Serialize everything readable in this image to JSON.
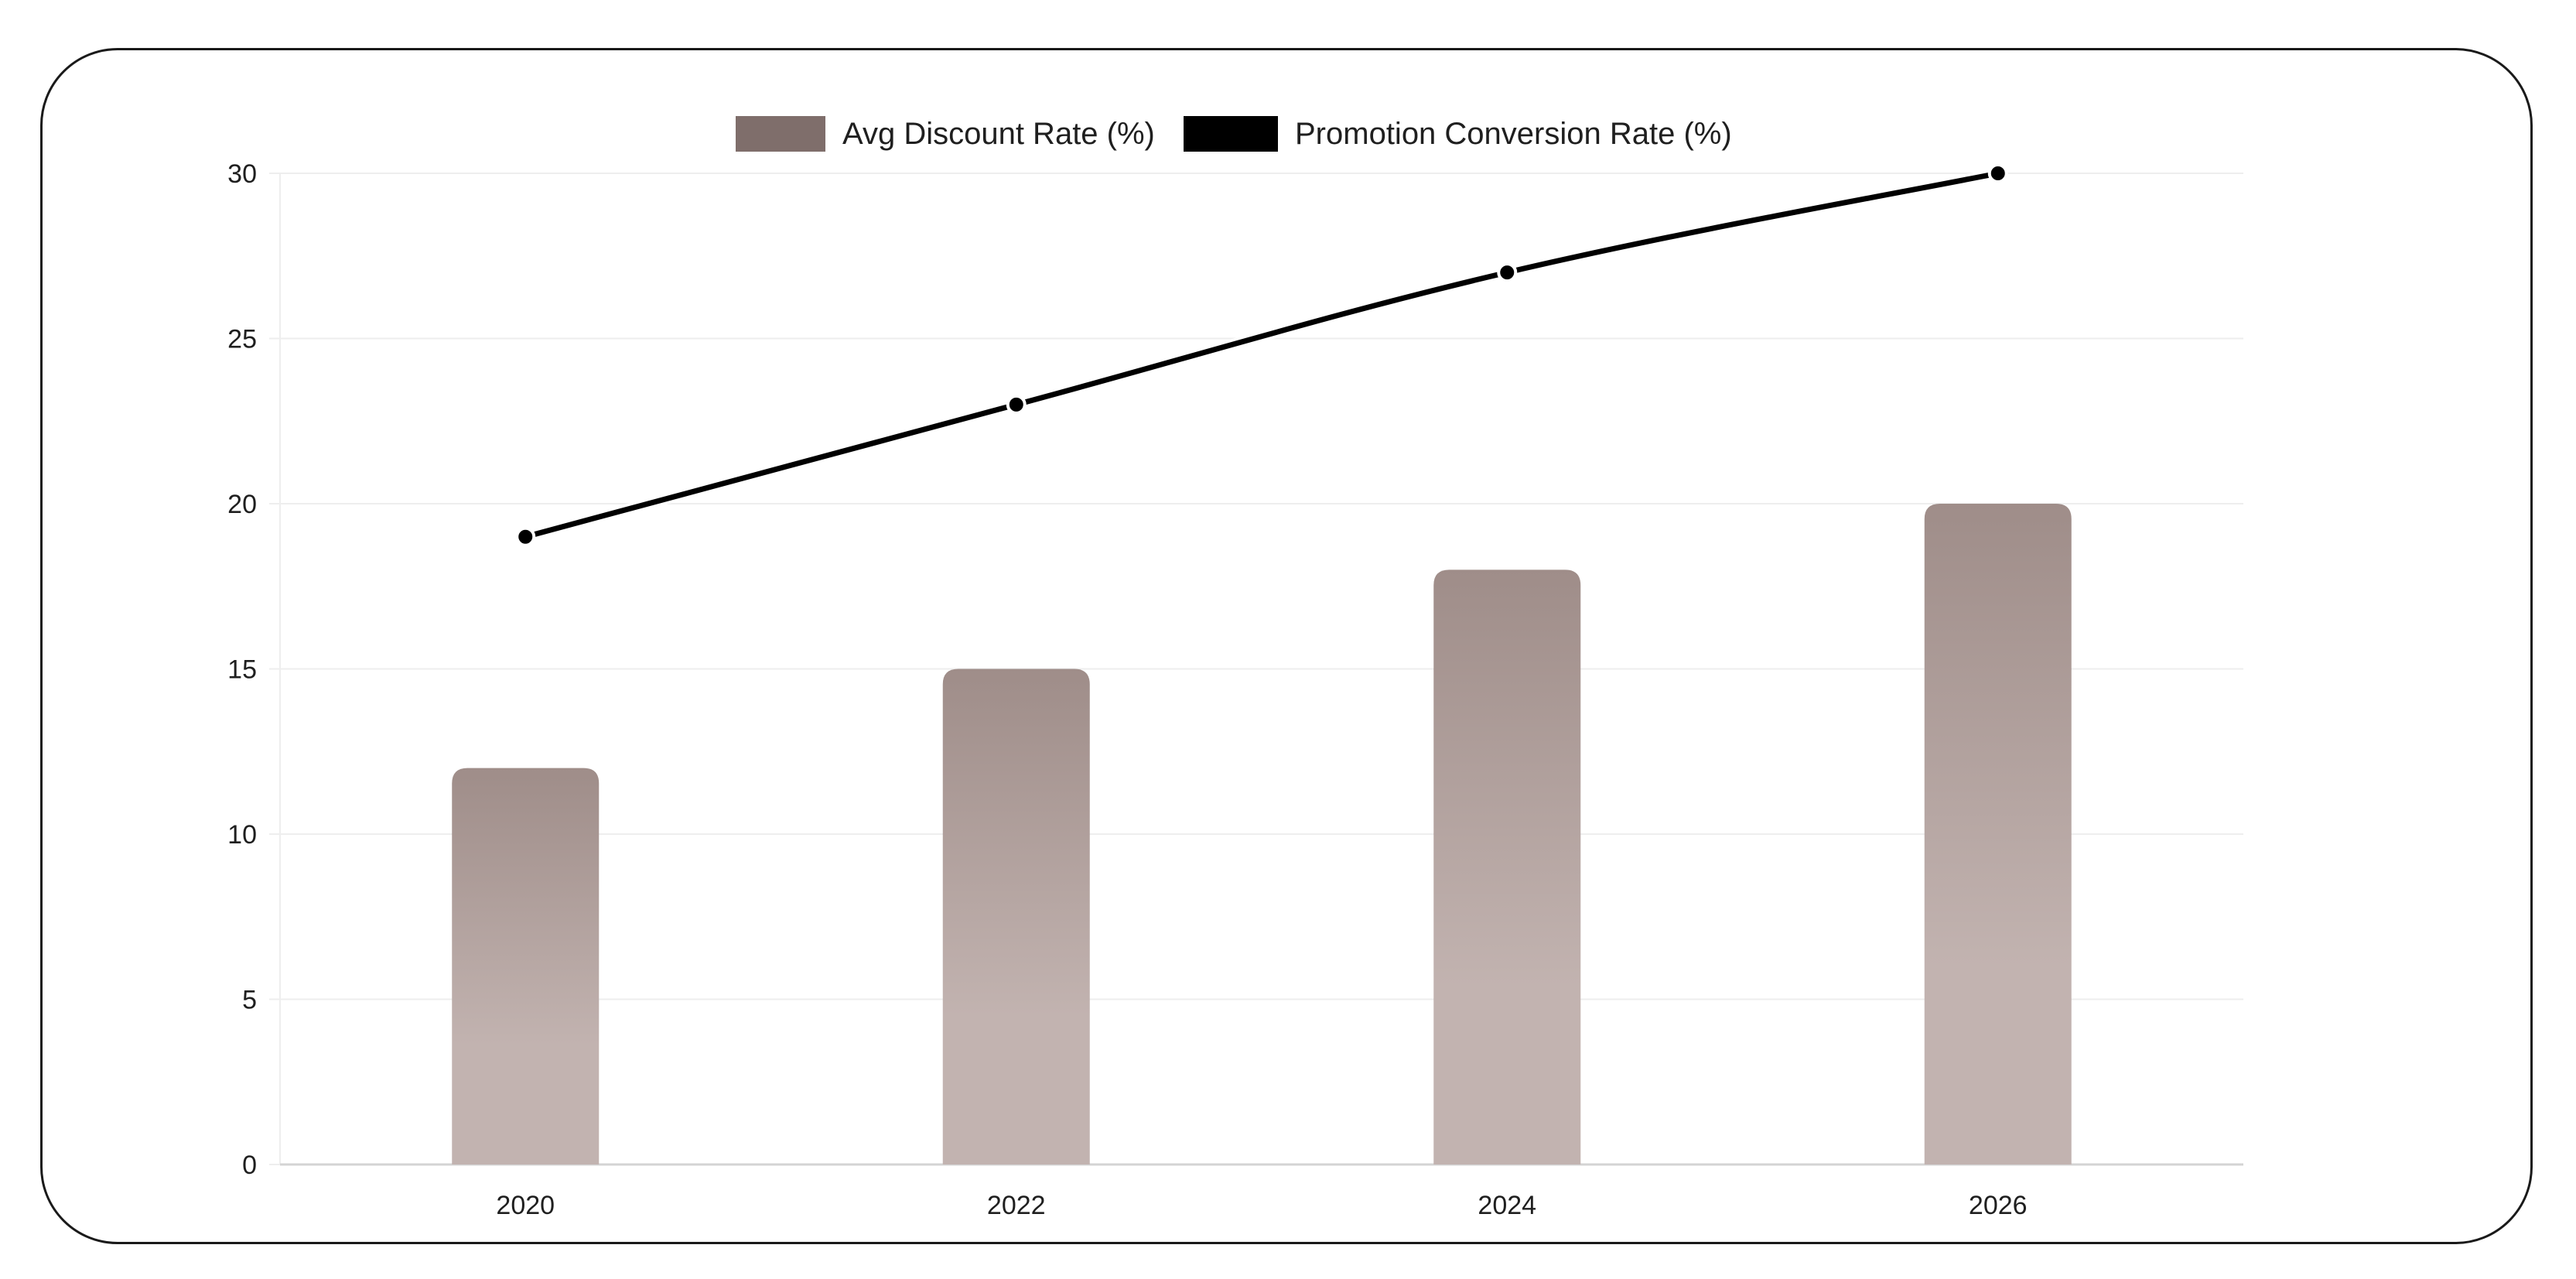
{
  "chart_data": {
    "type": "bar",
    "title": "",
    "xlabel": "",
    "ylabel": "",
    "categories": [
      "2020",
      "2022",
      "2024",
      "2026"
    ],
    "ylim": [
      0,
      30
    ],
    "yticks": [
      0,
      5,
      10,
      15,
      20,
      25,
      30
    ],
    "grid": true,
    "legend_position": "top-center",
    "series": [
      {
        "name": "Avg Discount Rate (%)",
        "type": "bar",
        "values": [
          12,
          15,
          18,
          20
        ],
        "color": "#7f6e6b",
        "gradient_top": "#9f8d89",
        "gradient_bottom": "#c2b3b0"
      },
      {
        "name": "Promotion Conversion Rate (%)",
        "type": "line",
        "values": [
          19,
          23,
          27,
          30
        ],
        "color": "#000000"
      }
    ]
  },
  "colors": {
    "card_border": "#1a1a1a",
    "grid": "#eeeeee",
    "axis": "#d4d4d4",
    "text": "#1f1f1f"
  }
}
